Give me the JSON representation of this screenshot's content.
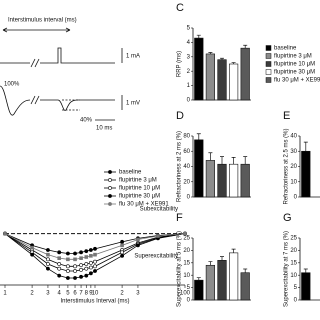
{
  "protocol": {
    "interval_label": "Interstimulus interval (ms)",
    "current_scale": "1 mA",
    "full_label": "100%",
    "partial_label": "40%",
    "voltage_scale": "1 mV",
    "time_scale": "10 ms"
  },
  "chart_data": [
    {
      "type": "line",
      "xlabel": "Interstimulus Interval (ms)",
      "annotations": [
        "Subexcitability",
        "Superexcitability"
      ],
      "log_x": true,
      "x": [
        1,
        2,
        3,
        4,
        5,
        6,
        7,
        8,
        9,
        10,
        20,
        30,
        50,
        100
      ],
      "xlim": [
        1,
        100
      ],
      "xticks": [
        1,
        2,
        3,
        4,
        5,
        6,
        7,
        8,
        9,
        10,
        {
          "value": 20,
          "label": "2"
        },
        {
          "value": 30,
          "label": "3"
        },
        100
      ],
      "ylim": [
        -22,
        5
      ],
      "series": [
        {
          "name": "baseline",
          "color": "#000000",
          "marker": "filled",
          "values": [
            0,
            -5,
            -7,
            -8,
            -8.5,
            -8.5,
            -8,
            -7.5,
            -7,
            -6.5,
            -3.5,
            -2,
            -0.8,
            0
          ]
        },
        {
          "name": "flupirtine 3 μM",
          "color": "#000000",
          "marker": "open",
          "values": [
            0,
            -7,
            -11,
            -13,
            -14,
            -14,
            -13.5,
            -13,
            -12.5,
            -12,
            -7,
            -4,
            -1.5,
            0
          ]
        },
        {
          "name": "flupirtine 10 μM",
          "color": "#000000",
          "marker": "open",
          "values": [
            0,
            -8,
            -13,
            -15,
            -16,
            -16,
            -15.5,
            -15,
            -14.5,
            -14,
            -8,
            -4.5,
            -1.8,
            0
          ]
        },
        {
          "name": "flupirtine 30 μM",
          "color": "#000000",
          "marker": "filled",
          "values": [
            0,
            -9,
            -15,
            -18,
            -19,
            -19,
            -18.5,
            -18,
            -17,
            -16,
            -9.5,
            -5,
            -2,
            0
          ]
        },
        {
          "name": "flu 30 μM + XE991",
          "color": "#777777",
          "marker": "square",
          "values": [
            0,
            -6,
            -9,
            -10.5,
            -11,
            -11,
            -10.5,
            -10,
            -9.5,
            -9,
            -5,
            -2.5,
            -1,
            0
          ]
        }
      ]
    },
    {
      "type": "bar",
      "letter": "C",
      "ylabel": "RRP (ms)",
      "categories": [
        "baseline",
        "flupirtine 3 μM",
        "flupirtine 10 μM",
        "flupirtine 30 μM",
        "flu 30 μM + XE991"
      ],
      "colors": [
        "#000000",
        "#8c8c8c",
        "#3c3c3c",
        "#ffffff",
        "#5a5a5a"
      ],
      "values": [
        4.3,
        3.2,
        2.8,
        2.5,
        3.6
      ],
      "errors": [
        0.2,
        0.1,
        0.1,
        0.1,
        0.2
      ],
      "ylim": [
        0,
        5
      ],
      "yticks": [
        0,
        1,
        2,
        3,
        4,
        5
      ]
    },
    {
      "type": "bar",
      "letter": "D",
      "ylabel": "Refractoriness at 2 ms (%)",
      "colors": [
        "#000000",
        "#8c8c8c",
        "#3c3c3c",
        "#ffffff",
        "#5a5a5a"
      ],
      "values": [
        75,
        48,
        43,
        43,
        43
      ],
      "errors": [
        8,
        10,
        10,
        9,
        10
      ],
      "ylim": [
        0,
        80
      ],
      "yticks": [
        0,
        20,
        40,
        60,
        80
      ]
    },
    {
      "type": "bar",
      "letter": "E",
      "ylabel": "Refractoriness at 2.5 ms (%)",
      "colors": [
        "#000000"
      ],
      "values": [
        30
      ],
      "errors": [
        6
      ],
      "ylim": [
        0,
        40
      ],
      "yticks": [
        0,
        10,
        20,
        30,
        40
      ]
    },
    {
      "type": "bar",
      "letter": "F",
      "ylabel": "Superexcitability at 5 ms (%)",
      "colors": [
        "#000000",
        "#8c8c8c",
        "#3c3c3c",
        "#ffffff",
        "#5a5a5a"
      ],
      "values": [
        8,
        14,
        16,
        19,
        11
      ],
      "errors": [
        1,
        1.5,
        1.5,
        1.5,
        1.5
      ],
      "ylim": [
        0,
        25
      ],
      "yticks": [
        0,
        5,
        10,
        15,
        20,
        25
      ]
    },
    {
      "type": "bar",
      "letter": "G",
      "ylabel": "Superexcitability at 7 ms (%)",
      "colors": [
        "#000000"
      ],
      "values": [
        11
      ],
      "errors": [
        1.5
      ],
      "ylim": [
        0,
        25
      ],
      "yticks": [
        0,
        5,
        10,
        15,
        20,
        25
      ]
    }
  ]
}
